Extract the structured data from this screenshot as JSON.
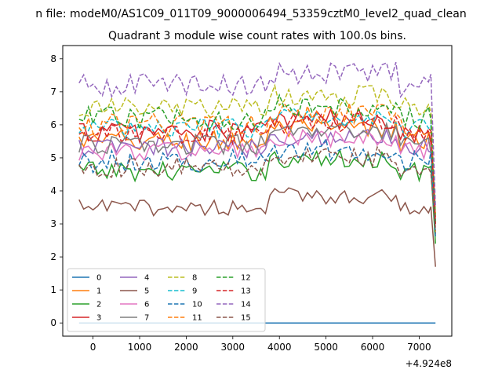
{
  "chart_data": {
    "type": "line",
    "suptitle": "n file: modeM0/AS1C09_011T09_9000006494_53359cztM0_level2_quad_clean",
    "title": "Quadrant 3 module wise count rates with 100.0s bins.",
    "xlabel": "",
    "ylabel": "",
    "x_offset_label": "+4.924e8",
    "xlim": [
      -650,
      7700
    ],
    "ylim": [
      -0.4,
      8.4
    ],
    "x_ticks": [
      0,
      1000,
      2000,
      3000,
      4000,
      5000,
      6000,
      7000
    ],
    "x_tick_labels": [
      "0",
      "1000",
      "2000",
      "3000",
      "4000",
      "5000",
      "6000",
      "7000"
    ],
    "y_ticks": [
      0,
      1,
      2,
      3,
      4,
      5,
      6,
      7,
      8
    ],
    "y_tick_labels": [
      "0",
      "1",
      "2",
      "3",
      "4",
      "5",
      "6",
      "7",
      "8"
    ],
    "x": [
      -300,
      -200,
      -100,
      0,
      100,
      200,
      300,
      400,
      500,
      600,
      700,
      800,
      900,
      1000,
      1100,
      1200,
      1300,
      1400,
      1500,
      1600,
      1700,
      1800,
      1900,
      2000,
      2100,
      2200,
      2300,
      2400,
      2500,
      2600,
      2700,
      2800,
      2900,
      3000,
      3100,
      3200,
      3300,
      3400,
      3500,
      3600,
      3700,
      3800,
      3900,
      4000,
      4100,
      4200,
      4300,
      4400,
      4500,
      4600,
      4700,
      4800,
      4900,
      5000,
      5100,
      5200,
      5300,
      5400,
      5500,
      5600,
      5700,
      5800,
      5900,
      6000,
      6100,
      6200,
      6300,
      6400,
      6500,
      6600,
      6700,
      6800,
      6900,
      7000,
      7100,
      7200,
      7250,
      7350
    ],
    "legend": {
      "location": "lower-left",
      "ncol": 4
    },
    "series": [
      {
        "name": "0",
        "color": "#1f77b4",
        "dash": "solid",
        "base": 0.0,
        "amp": 0.0,
        "end": 0.0
      },
      {
        "name": "1",
        "color": "#ff7f0e",
        "dash": "solid",
        "base": 5.5,
        "amp": 0.35,
        "end": 2.7
      },
      {
        "name": "2",
        "color": "#2ca02c",
        "dash": "solid",
        "base": 4.6,
        "amp": 0.3,
        "end": 2.4
      },
      {
        "name": "3",
        "color": "#d62728",
        "dash": "solid",
        "base": 5.8,
        "amp": 0.35,
        "end": 3.2
      },
      {
        "name": "4",
        "color": "#9467bd",
        "dash": "solid",
        "base": 5.3,
        "amp": 0.3,
        "end": 3.0
      },
      {
        "name": "5",
        "color": "#8c564b",
        "dash": "solid",
        "base": 3.5,
        "amp": 0.25,
        "end": 1.7
      },
      {
        "name": "6",
        "color": "#e377c2",
        "dash": "solid",
        "base": 5.2,
        "amp": 0.3,
        "end": 2.9
      },
      {
        "name": "7",
        "color": "#7f7f7f",
        "dash": "solid",
        "base": 5.4,
        "amp": 0.3,
        "end": 3.0
      },
      {
        "name": "8",
        "color": "#bcbd22",
        "dash": "dashed",
        "base": 6.5,
        "amp": 0.35,
        "end": 3.3
      },
      {
        "name": "9",
        "color": "#17becf",
        "dash": "dashed",
        "base": 5.9,
        "amp": 0.3,
        "end": 3.1
      },
      {
        "name": "10",
        "color": "#1f77b4",
        "dash": "dashed",
        "base": 4.9,
        "amp": 0.35,
        "end": 2.6
      },
      {
        "name": "11",
        "color": "#ff7f0e",
        "dash": "dashed",
        "base": 6.0,
        "amp": 0.35,
        "end": 3.2
      },
      {
        "name": "12",
        "color": "#2ca02c",
        "dash": "dashed",
        "base": 6.2,
        "amp": 0.35,
        "end": 3.0
      },
      {
        "name": "13",
        "color": "#d62728",
        "dash": "dashed",
        "base": 5.7,
        "amp": 0.3,
        "end": 3.0
      },
      {
        "name": "14",
        "color": "#9467bd",
        "dash": "dashed",
        "base": 7.2,
        "amp": 0.35,
        "end": 3.5
      },
      {
        "name": "15",
        "color": "#8c564b",
        "dash": "dashed",
        "base": 4.7,
        "amp": 0.3,
        "end": 2.8
      }
    ]
  }
}
